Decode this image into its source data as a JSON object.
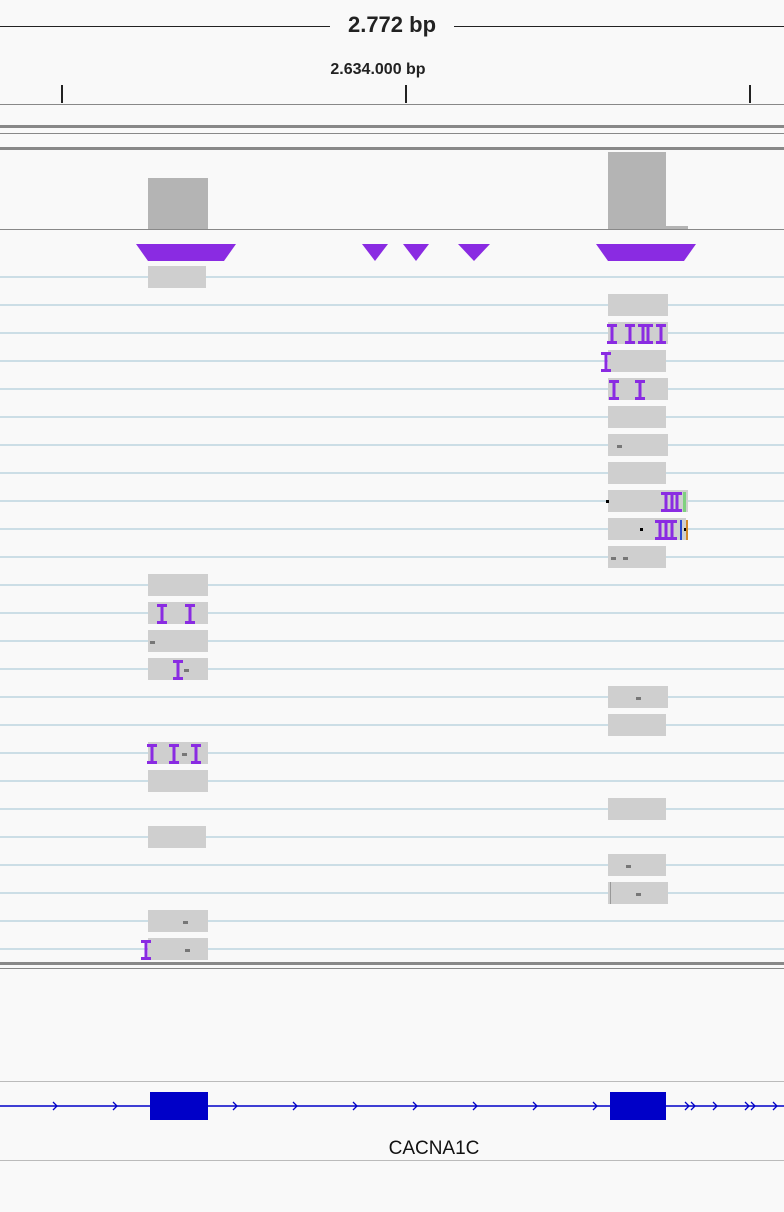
{
  "ruler": {
    "span_label": "2.772 bp",
    "position_label": "2.634.000 bp"
  },
  "gene_track": {
    "gene_name": "CACNA1C",
    "color": "#0000c8"
  },
  "colors": {
    "coverage": "#b4b4b4",
    "read": "#cfcfcf",
    "insertion": "#8a2be2",
    "row_line": "#9ec2d4",
    "mismatch_A": "#7fd17f",
    "mismatch_G": "#d18a2b",
    "mismatch_C": "#2b4ad1"
  }
}
